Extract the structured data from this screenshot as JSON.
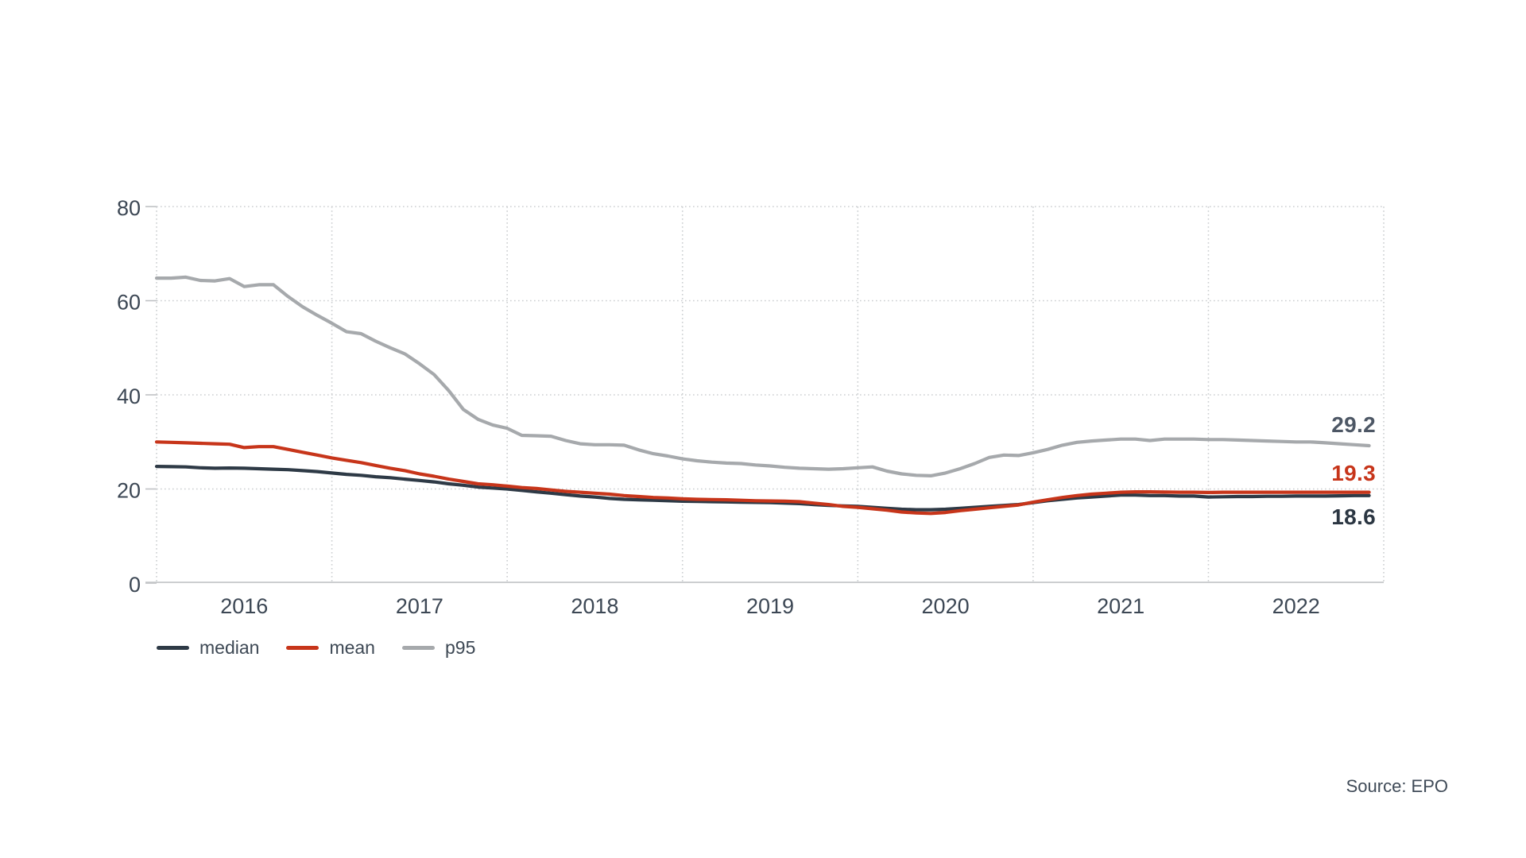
{
  "chart_data": {
    "type": "line",
    "title": "",
    "x_axis": {
      "year_labels": [
        "2016",
        "2017",
        "2018",
        "2019",
        "2020",
        "2021",
        "2022"
      ],
      "gridlines_per_year_boundary": true
    },
    "y_axis": {
      "ticks": [
        0,
        20,
        40,
        60,
        80
      ],
      "range": [
        0,
        80
      ],
      "grid": "dotted"
    },
    "x_frequency": "monthly",
    "x_start": "2016-01",
    "x_end": "2022-12",
    "legend_position": "bottom-left",
    "series": [
      {
        "name": "median",
        "color": "#2e3a46",
        "end_label": "18.6",
        "end_label_color": "#2b3642",
        "values": [
          24.8,
          24.75,
          24.7,
          24.5,
          24.4,
          24.45,
          24.4,
          24.3,
          24.2,
          24.1,
          23.9,
          23.7,
          23.4,
          23.1,
          22.9,
          22.6,
          22.4,
          22.1,
          21.8,
          21.5,
          21.1,
          20.8,
          20.4,
          20.2,
          20.0,
          19.7,
          19.4,
          19.1,
          18.8,
          18.5,
          18.3,
          18.0,
          17.8,
          17.7,
          17.6,
          17.5,
          17.4,
          17.35,
          17.3,
          17.25,
          17.2,
          17.15,
          17.1,
          17.0,
          16.9,
          16.7,
          16.5,
          16.4,
          16.3,
          16.1,
          15.9,
          15.7,
          15.6,
          15.6,
          15.7,
          15.9,
          16.1,
          16.3,
          16.5,
          16.7,
          17.1,
          17.5,
          17.8,
          18.1,
          18.3,
          18.5,
          18.7,
          18.7,
          18.6,
          18.6,
          18.5,
          18.5,
          18.3,
          18.35,
          18.4,
          18.4,
          18.45,
          18.45,
          18.5,
          18.5,
          18.5,
          18.55,
          18.6,
          18.6
        ]
      },
      {
        "name": "mean",
        "color": "#c7351a",
        "end_label": "19.3",
        "end_label_color": "#c7351a",
        "values": [
          30.0,
          29.9,
          29.8,
          29.7,
          29.6,
          29.5,
          28.8,
          29.0,
          29.0,
          28.4,
          27.8,
          27.2,
          26.6,
          26.1,
          25.6,
          25.0,
          24.4,
          23.9,
          23.2,
          22.7,
          22.1,
          21.6,
          21.1,
          20.9,
          20.6,
          20.3,
          20.1,
          19.8,
          19.5,
          19.3,
          19.1,
          18.9,
          18.6,
          18.4,
          18.2,
          18.1,
          17.9,
          17.8,
          17.75,
          17.7,
          17.6,
          17.5,
          17.45,
          17.4,
          17.3,
          17.0,
          16.7,
          16.3,
          16.1,
          15.8,
          15.5,
          15.1,
          14.9,
          14.8,
          15.0,
          15.4,
          15.7,
          16.0,
          16.3,
          16.6,
          17.2,
          17.7,
          18.2,
          18.6,
          18.9,
          19.1,
          19.3,
          19.4,
          19.4,
          19.35,
          19.3,
          19.3,
          19.25,
          19.3,
          19.3,
          19.3,
          19.3,
          19.3,
          19.3,
          19.3,
          19.3,
          19.3,
          19.3,
          19.3
        ]
      },
      {
        "name": "p95",
        "color": "#a6a9ac",
        "end_label": "29.2",
        "end_label_color": "#4d5765",
        "values": [
          64.8,
          64.8,
          65.0,
          64.3,
          64.2,
          64.7,
          63.0,
          63.4,
          63.4,
          60.9,
          58.7,
          56.9,
          55.2,
          53.4,
          53.0,
          51.4,
          50.0,
          48.7,
          46.6,
          44.3,
          40.9,
          36.9,
          34.8,
          33.6,
          32.9,
          31.4,
          31.3,
          31.2,
          30.3,
          29.6,
          29.4,
          29.4,
          29.3,
          28.3,
          27.5,
          27.0,
          26.4,
          26.0,
          25.7,
          25.5,
          25.4,
          25.1,
          24.9,
          24.6,
          24.4,
          24.3,
          24.2,
          24.3,
          24.5,
          24.7,
          23.8,
          23.2,
          22.9,
          22.8,
          23.4,
          24.3,
          25.4,
          26.7,
          27.2,
          27.1,
          27.7,
          28.4,
          29.3,
          29.9,
          30.2,
          30.4,
          30.6,
          30.6,
          30.3,
          30.6,
          30.6,
          30.6,
          30.5,
          30.5,
          30.4,
          30.3,
          30.2,
          30.1,
          30.0,
          30.0,
          29.8,
          29.6,
          29.4,
          29.2
        ]
      }
    ],
    "source": "Source: EPO"
  }
}
